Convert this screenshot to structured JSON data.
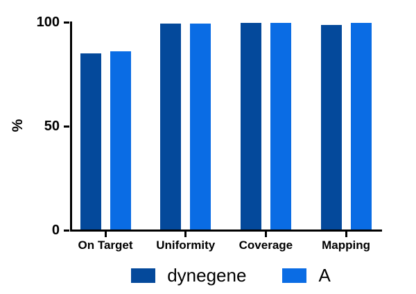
{
  "chart_data": {
    "type": "bar",
    "title": "",
    "xlabel": "",
    "ylabel": "%",
    "categories": [
      "On Target",
      "Uniformity",
      "Coverage",
      "Mapping"
    ],
    "series": [
      {
        "name": "dynegene",
        "color": "#04499B",
        "values": [
          85,
          99.4,
          99.8,
          98.6
        ]
      },
      {
        "name": "A",
        "color": "#0A6CE4",
        "values": [
          86,
          99.2,
          99.6,
          99.8
        ]
      }
    ],
    "ylim": [
      0,
      100
    ],
    "yticks": [
      0,
      50,
      100
    ],
    "grid": false,
    "legend_position": "bottom",
    "axis_color": "#000000",
    "background_color": "#FFFFFF"
  }
}
